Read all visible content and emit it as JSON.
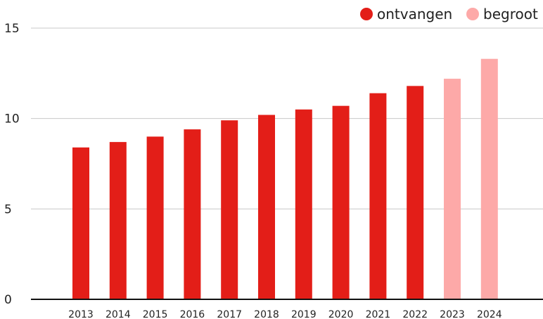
{
  "chart_data": {
    "type": "bar",
    "title": "",
    "xlabel": "",
    "ylabel": "",
    "categories": [
      "2013",
      "2014",
      "2015",
      "2016",
      "2017",
      "2018",
      "2019",
      "2020",
      "2021",
      "2022",
      "2023",
      "2024"
    ],
    "values": [
      8.4,
      8.7,
      9.0,
      9.4,
      9.9,
      10.2,
      10.5,
      10.7,
      11.4,
      11.8,
      12.2,
      13.3
    ],
    "series_by_category": [
      "ontvangen",
      "ontvangen",
      "ontvangen",
      "ontvangen",
      "ontvangen",
      "ontvangen",
      "ontvangen",
      "ontvangen",
      "ontvangen",
      "ontvangen",
      "begroot",
      "begroot"
    ],
    "ylim": [
      0,
      15
    ],
    "yticks": [
      0,
      5,
      10,
      15
    ],
    "grid": true,
    "legend_position": "top-right",
    "legend": [
      {
        "name": "ontvangen",
        "color": "#e31e18"
      },
      {
        "name": "begroot",
        "color": "#fda9a8"
      }
    ]
  }
}
